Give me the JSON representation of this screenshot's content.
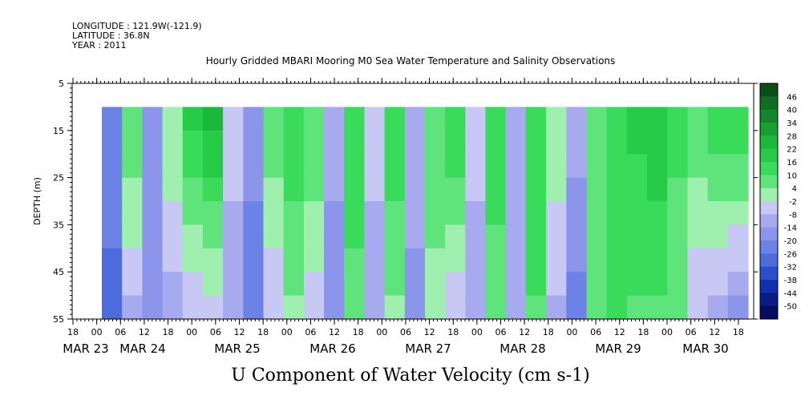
{
  "header": {
    "longitude": "LONGITUDE : 121.9W(-121.9)",
    "latitude": "LATITUDE : 36.8N",
    "year": "YEAR : 2011"
  },
  "chart_data": {
    "type": "heatmap",
    "title": "Hourly Gridded MBARI Mooring M0 Sea Water Temperature and Salinity Observations",
    "xlabel": "U Component of Water Velocity (cm s-1)",
    "ylabel": "DEPTH (m)",
    "ylim": [
      5,
      55
    ],
    "y_inverted": true,
    "yticks": [
      5,
      15,
      25,
      35,
      45,
      55
    ],
    "x_hour_ticks": [
      "18",
      "00",
      "06",
      "12",
      "18",
      "00",
      "06",
      "12",
      "18",
      "00",
      "06",
      "12",
      "18",
      "00",
      "06",
      "12",
      "18",
      "00",
      "06",
      "12",
      "18",
      "00",
      "06",
      "12",
      "18",
      "00",
      "06",
      "12",
      "18"
    ],
    "x_date_labels": [
      "MAR 23",
      "MAR 24",
      "MAR 25",
      "MAR 26",
      "MAR 27",
      "MAR 28",
      "MAR 29",
      "MAR 30"
    ],
    "data_depth_range": [
      10,
      55
    ],
    "colorbar": {
      "labels": [
        "46",
        "40",
        "34",
        "28",
        "22",
        "16",
        "10",
        "4",
        "-2",
        "-8",
        "-14",
        "-20",
        "-26",
        "-32",
        "-38",
        "-44",
        "-50"
      ],
      "colors": [
        "#0b4d1a",
        "#0f6d24",
        "#12862c",
        "#16a034",
        "#1cb83c",
        "#26cc48",
        "#3ada5a",
        "#5ee47a",
        "#9ff0ae",
        "#c8c8f4",
        "#a7aaee",
        "#8b95ea",
        "#6c82e6",
        "#4c6cdc",
        "#2a4fcc",
        "#1232ad",
        "#0a1a86",
        "#050e5e"
      ]
    },
    "time_columns_u_cm_s": [
      {
        "t": "MAR 23 02",
        "surface": -20,
        "bottom": -28
      },
      {
        "t": "MAR 23 06",
        "surface": 10,
        "bottom": -8
      },
      {
        "t": "MAR 23 12",
        "surface": -14,
        "bottom": -16
      },
      {
        "t": "MAR 23 18",
        "surface": 4,
        "bottom": -10
      },
      {
        "t": "MAR 24 00",
        "surface": 18,
        "bottom": -6
      },
      {
        "t": "MAR 24 06",
        "surface": 24,
        "bottom": -4
      },
      {
        "t": "MAR 24 12",
        "surface": -4,
        "bottom": -12
      },
      {
        "t": "MAR 24 18",
        "surface": -18,
        "bottom": -22
      },
      {
        "t": "MAR 25 00",
        "surface": 8,
        "bottom": -6
      },
      {
        "t": "MAR 25 06",
        "surface": 16,
        "bottom": 4
      },
      {
        "t": "MAR 25 12",
        "surface": 10,
        "bottom": -4
      },
      {
        "t": "MAR 25 18",
        "surface": -10,
        "bottom": -18
      },
      {
        "t": "MAR 26 00",
        "surface": 16,
        "bottom": 8
      },
      {
        "t": "MAR 26 06",
        "surface": -6,
        "bottom": -10
      },
      {
        "t": "MAR 26 12",
        "surface": 14,
        "bottom": 4
      },
      {
        "t": "MAR 26 18",
        "surface": -8,
        "bottom": -16
      },
      {
        "t": "MAR 27 00",
        "surface": 10,
        "bottom": 2
      },
      {
        "t": "MAR 27 06",
        "surface": 16,
        "bottom": -6
      },
      {
        "t": "MAR 27 12",
        "surface": -6,
        "bottom": -10
      },
      {
        "t": "MAR 27 18",
        "surface": 16,
        "bottom": 6
      },
      {
        "t": "MAR 28 00",
        "surface": -8,
        "bottom": -12
      },
      {
        "t": "MAR 28 06",
        "surface": 14,
        "bottom": 10
      },
      {
        "t": "MAR 28 12",
        "surface": 2,
        "bottom": -8
      },
      {
        "t": "MAR 28 18",
        "surface": -10,
        "bottom": -22
      },
      {
        "t": "MAR 29 00",
        "surface": 8,
        "bottom": 10
      },
      {
        "t": "MAR 29 06",
        "surface": 16,
        "bottom": 14
      },
      {
        "t": "MAR 29 12",
        "surface": 18,
        "bottom": 10
      },
      {
        "t": "MAR 29 18",
        "surface": 22,
        "bottom": 10
      },
      {
        "t": "MAR 30 00",
        "surface": 12,
        "bottom": 6
      },
      {
        "t": "MAR 30 06",
        "surface": 10,
        "bottom": -6
      },
      {
        "t": "MAR 30 12",
        "surface": 14,
        "bottom": -10
      },
      {
        "t": "MAR 30 18",
        "surface": 16,
        "bottom": -14
      }
    ]
  }
}
